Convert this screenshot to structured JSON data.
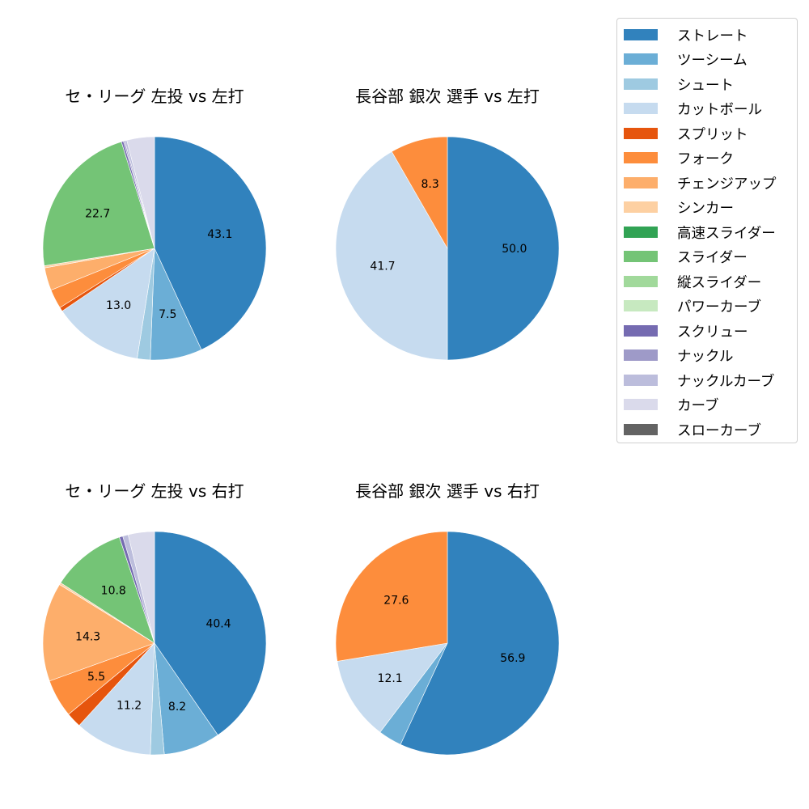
{
  "legend": {
    "items": [
      {
        "label": "ストレート",
        "color": "#3182bd"
      },
      {
        "label": "ツーシーム",
        "color": "#6baed6"
      },
      {
        "label": "シュート",
        "color": "#9ecae1"
      },
      {
        "label": "カットボール",
        "color": "#c6dbef"
      },
      {
        "label": "スプリット",
        "color": "#e6550d"
      },
      {
        "label": "フォーク",
        "color": "#fd8d3c"
      },
      {
        "label": "チェンジアップ",
        "color": "#fdae6b"
      },
      {
        "label": "シンカー",
        "color": "#fdd0a2"
      },
      {
        "label": "高速スライダー",
        "color": "#31a354"
      },
      {
        "label": "スライダー",
        "color": "#74c476"
      },
      {
        "label": "縦スライダー",
        "color": "#a1d99b"
      },
      {
        "label": "パワーカーブ",
        "color": "#c7e9c0"
      },
      {
        "label": "スクリュー",
        "color": "#756bb1"
      },
      {
        "label": "ナックル",
        "color": "#9e9ac8"
      },
      {
        "label": "ナックルカーブ",
        "color": "#bcbddc"
      },
      {
        "label": "カーブ",
        "color": "#dadaeb"
      },
      {
        "label": "スローカーブ",
        "color": "#636363"
      }
    ]
  },
  "chart_data": [
    {
      "type": "pie",
      "title": "セ・リーグ 左投 vs 左打",
      "label_threshold": 5,
      "slices": [
        {
          "label": "ストレート",
          "value": 43.1
        },
        {
          "label": "ツーシーム",
          "value": 7.5
        },
        {
          "label": "シュート",
          "value": 1.9
        },
        {
          "label": "カットボール",
          "value": 13.0
        },
        {
          "label": "スプリット",
          "value": 0.6
        },
        {
          "label": "フォーク",
          "value": 2.8
        },
        {
          "label": "チェンジアップ",
          "value": 3.3
        },
        {
          "label": "シンカー",
          "value": 0.3
        },
        {
          "label": "スライダー",
          "value": 22.7
        },
        {
          "label": "スクリュー",
          "value": 0.3
        },
        {
          "label": "ナックル",
          "value": 0.2
        },
        {
          "label": "ナックルカーブ",
          "value": 0.3
        },
        {
          "label": "カーブ",
          "value": 4.0
        }
      ]
    },
    {
      "type": "pie",
      "title": "長谷部 銀次 選手 vs 左打",
      "label_threshold": 5,
      "slices": [
        {
          "label": "ストレート",
          "value": 50.0
        },
        {
          "label": "カットボール",
          "value": 41.7
        },
        {
          "label": "フォーク",
          "value": 8.3
        }
      ]
    },
    {
      "type": "pie",
      "title": "セ・リーグ 左投 vs 右打",
      "label_threshold": 5,
      "slices": [
        {
          "label": "ストレート",
          "value": 40.4
        },
        {
          "label": "ツーシーム",
          "value": 8.2
        },
        {
          "label": "シュート",
          "value": 2.0
        },
        {
          "label": "カットボール",
          "value": 11.2
        },
        {
          "label": "スプリット",
          "value": 2.2
        },
        {
          "label": "フォーク",
          "value": 5.5
        },
        {
          "label": "チェンジアップ",
          "value": 14.3
        },
        {
          "label": "シンカー",
          "value": 0.3
        },
        {
          "label": "スライダー",
          "value": 10.8
        },
        {
          "label": "スクリュー",
          "value": 0.5
        },
        {
          "label": "ナックルカーブ",
          "value": 0.8
        },
        {
          "label": "カーブ",
          "value": 3.8
        }
      ]
    },
    {
      "type": "pie",
      "title": "長谷部 銀次 選手 vs 右打",
      "label_threshold": 5,
      "slices": [
        {
          "label": "ストレート",
          "value": 56.9
        },
        {
          "label": "ツーシーム",
          "value": 3.4
        },
        {
          "label": "カットボール",
          "value": 12.1
        },
        {
          "label": "フォーク",
          "value": 27.6
        }
      ]
    }
  ]
}
